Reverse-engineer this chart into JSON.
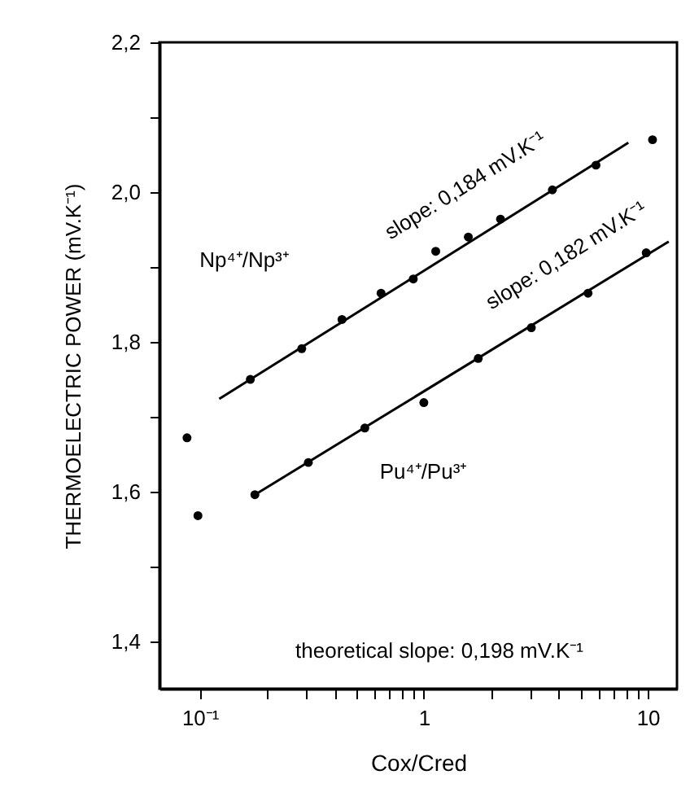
{
  "chart_data": {
    "type": "scatter",
    "xlabel": "Cox/Cred",
    "ylabel": "THERMOELECTRIC POWER (mV.K⁻¹)",
    "log": "x",
    "grid": false,
    "marker": "circle",
    "xlim": [
      0.066,
      13.5
    ],
    "ylim": [
      1.337,
      2.2
    ],
    "xticks": [
      {
        "value": 0.1,
        "label": "10⁻¹"
      },
      {
        "value": 0.2,
        "label": null
      },
      {
        "value": 0.3,
        "label": null
      },
      {
        "value": 0.4,
        "label": null
      },
      {
        "value": 0.5,
        "label": null
      },
      {
        "value": 0.6,
        "label": null
      },
      {
        "value": 0.7,
        "label": null
      },
      {
        "value": 0.8,
        "label": null
      },
      {
        "value": 0.9,
        "label": null
      },
      1,
      {
        "value": 2,
        "label": null
      },
      {
        "value": 3,
        "label": null
      },
      {
        "value": 4,
        "label": null
      },
      {
        "value": 5,
        "label": null
      },
      {
        "value": 6,
        "label": null
      },
      {
        "value": 7,
        "label": null
      },
      {
        "value": 8,
        "label": null
      },
      {
        "value": 9,
        "label": null
      },
      10
    ],
    "yticks": [
      {
        "value": 1.4,
        "label": "1,4"
      },
      {
        "value": 1.5,
        "label": null
      },
      {
        "value": 1.6,
        "label": "1,6"
      },
      {
        "value": 1.7,
        "label": null
      },
      {
        "value": 1.8,
        "label": "1,8"
      },
      {
        "value": 1.9,
        "label": null
      },
      {
        "value": 2.0,
        "label": "2,0"
      },
      {
        "value": 2.1,
        "label": null
      },
      {
        "value": 2.2,
        "label": "2,2"
      }
    ],
    "series": [
      {
        "color": "#000000",
        "x": [
          0.0876,
          0.168,
          0.285,
          0.431,
          0.644,
          0.897,
          1.13,
          1.58,
          2.2,
          3.75,
          5.87,
          10.5
        ],
        "values": [
          1.672,
          1.75,
          1.791,
          1.83,
          1.865,
          1.884,
          1.921,
          1.94,
          1.964,
          2.003,
          2.036,
          2.07
        ]
      },
      {
        "color": "#000000",
        "x": [
          0.098,
          0.176,
          0.305,
          0.545,
          1.0,
          1.75,
          3.02,
          5.41,
          9.84
        ],
        "values": [
          1.568,
          1.596,
          1.639,
          1.685,
          1.719,
          1.778,
          1.819,
          1.865,
          1.919
        ]
      },
      {
        "type": "line",
        "color": "#000000",
        "marker": "none",
        "line_style": "solid",
        "x": [
          0.122,
          8.19
        ],
        "values": [
          1.724,
          2.066
        ]
      },
      {
        "type": "line",
        "color": "#000000",
        "marker": "none",
        "line_style": "solid",
        "x": [
          0.176,
          12.4
        ],
        "values": [
          1.596,
          1.934
        ]
      }
    ],
    "annotations": [
      "Np⁴⁺/Np³⁺",
      "Pu⁴⁺/Pu³⁺",
      "slope: 0,184 mV.K⁻¹",
      "slope: 0,182 mV.K⁻¹",
      "theoretical slope: 0,198 mV.K⁻¹"
    ]
  }
}
